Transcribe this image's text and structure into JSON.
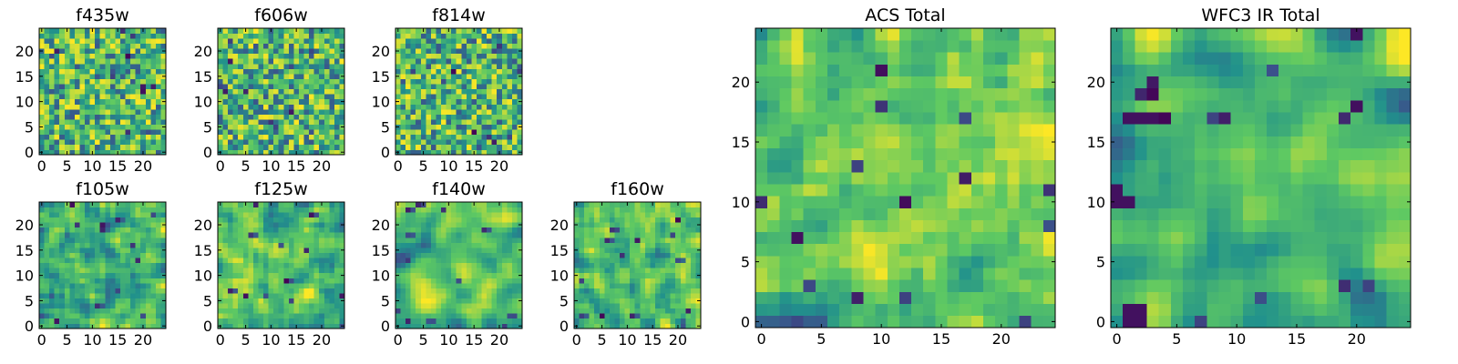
{
  "chart_data": [
    {
      "type": "heatmap",
      "title": "f435w",
      "seed": 11,
      "smooth": 0,
      "style": "noise",
      "x_ticks": [
        "0",
        "5",
        "10",
        "15",
        "20"
      ],
      "y_ticks": [
        "0",
        "5",
        "10",
        "15",
        "20"
      ],
      "xlim": [
        0,
        25
      ],
      "ylim": [
        0,
        25
      ],
      "grid": false
    },
    {
      "type": "heatmap",
      "title": "f606w",
      "seed": 23,
      "smooth": 0,
      "style": "noise",
      "x_ticks": [
        "0",
        "5",
        "10",
        "15",
        "20"
      ],
      "y_ticks": [
        "0",
        "5",
        "10",
        "15",
        "20"
      ],
      "xlim": [
        0,
        25
      ],
      "ylim": [
        0,
        25
      ],
      "grid": false
    },
    {
      "type": "heatmap",
      "title": "f814w",
      "seed": 37,
      "smooth": 0,
      "style": "noise",
      "x_ticks": [
        "0",
        "5",
        "10",
        "15",
        "20"
      ],
      "y_ticks": [
        "0",
        "5",
        "10",
        "15",
        "20"
      ],
      "xlim": [
        0,
        25
      ],
      "ylim": [
        0,
        25
      ],
      "grid": false
    },
    {
      "type": "heatmap",
      "title": "f105w",
      "seed": 41,
      "smooth": 1,
      "style": "smooth",
      "x_ticks": [
        "0",
        "5",
        "10",
        "15",
        "20"
      ],
      "y_ticks": [
        "0",
        "5",
        "10",
        "15",
        "20"
      ],
      "xlim": [
        0,
        25
      ],
      "ylim": [
        0,
        25
      ],
      "grid": false
    },
    {
      "type": "heatmap",
      "title": "f125w",
      "seed": 53,
      "smooth": 1,
      "style": "smooth",
      "x_ticks": [
        "0",
        "5",
        "10",
        "15",
        "20"
      ],
      "y_ticks": [
        "0",
        "5",
        "10",
        "15",
        "20"
      ],
      "xlim": [
        0,
        25
      ],
      "ylim": [
        0,
        25
      ],
      "grid": false
    },
    {
      "type": "heatmap",
      "title": "f140w",
      "seed": 67,
      "smooth": 2,
      "style": "smooth",
      "x_ticks": [
        "0",
        "5",
        "10",
        "15",
        "20"
      ],
      "y_ticks": [
        "0",
        "5",
        "10",
        "15",
        "20"
      ],
      "xlim": [
        0,
        25
      ],
      "ylim": [
        0,
        25
      ],
      "grid": false
    },
    {
      "type": "heatmap",
      "title": "f160w",
      "seed": 79,
      "smooth": 1,
      "style": "smooth",
      "x_ticks": [
        "0",
        "5",
        "10",
        "15",
        "20"
      ],
      "y_ticks": [
        "0",
        "5",
        "10",
        "15",
        "20"
      ],
      "xlim": [
        0,
        25
      ],
      "ylim": [
        0,
        25
      ],
      "grid": false
    },
    {
      "type": "heatmap",
      "title": "ACS Total",
      "seed": 97,
      "smooth": 1,
      "style": "acs",
      "x_ticks": [
        "0",
        "5",
        "10",
        "15",
        "20"
      ],
      "y_ticks": [
        "0",
        "5",
        "10",
        "15",
        "20"
      ],
      "xlim": [
        0,
        25
      ],
      "ylim": [
        0,
        25
      ],
      "grid": false
    },
    {
      "type": "heatmap",
      "title": "WFC3 IR Total",
      "seed": 113,
      "smooth": 2,
      "style": "ir",
      "x_ticks": [
        "0",
        "5",
        "10",
        "15",
        "20"
      ],
      "y_ticks": [
        "0",
        "5",
        "10",
        "15",
        "20"
      ],
      "xlim": [
        0,
        25
      ],
      "ylim": [
        0,
        25
      ],
      "grid": false
    }
  ],
  "colormap": [
    "#440154",
    "#3b528b",
    "#21918c",
    "#5ec962",
    "#fde725"
  ]
}
